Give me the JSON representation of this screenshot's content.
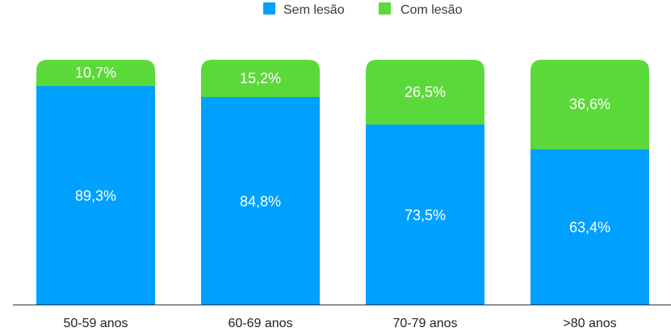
{
  "chart_data": {
    "type": "bar",
    "stacked": true,
    "percent": true,
    "categories": [
      "50-59 anos",
      "60-69 anos",
      "70-79 anos",
      ">80 anos"
    ],
    "series": [
      {
        "name": "Sem lesão",
        "values": [
          89.3,
          84.8,
          73.5,
          63.4
        ],
        "labels": [
          "89,3%",
          "84,8%",
          "73,5%",
          "63,4%"
        ]
      },
      {
        "name": "Com lesão",
        "values": [
          10.7,
          15.2,
          26.5,
          36.6
        ],
        "labels": [
          "10,7%",
          "15,2%",
          "26,5%",
          "36,6%"
        ]
      }
    ],
    "ylim": [
      0,
      100
    ],
    "grid": false,
    "legend_position": "top-center",
    "title": "",
    "xlabel": "",
    "ylabel": ""
  },
  "colors": {
    "sem_lesao": "#00a0ff",
    "com_lesao": "#5cd93a",
    "axis": "#333333"
  }
}
